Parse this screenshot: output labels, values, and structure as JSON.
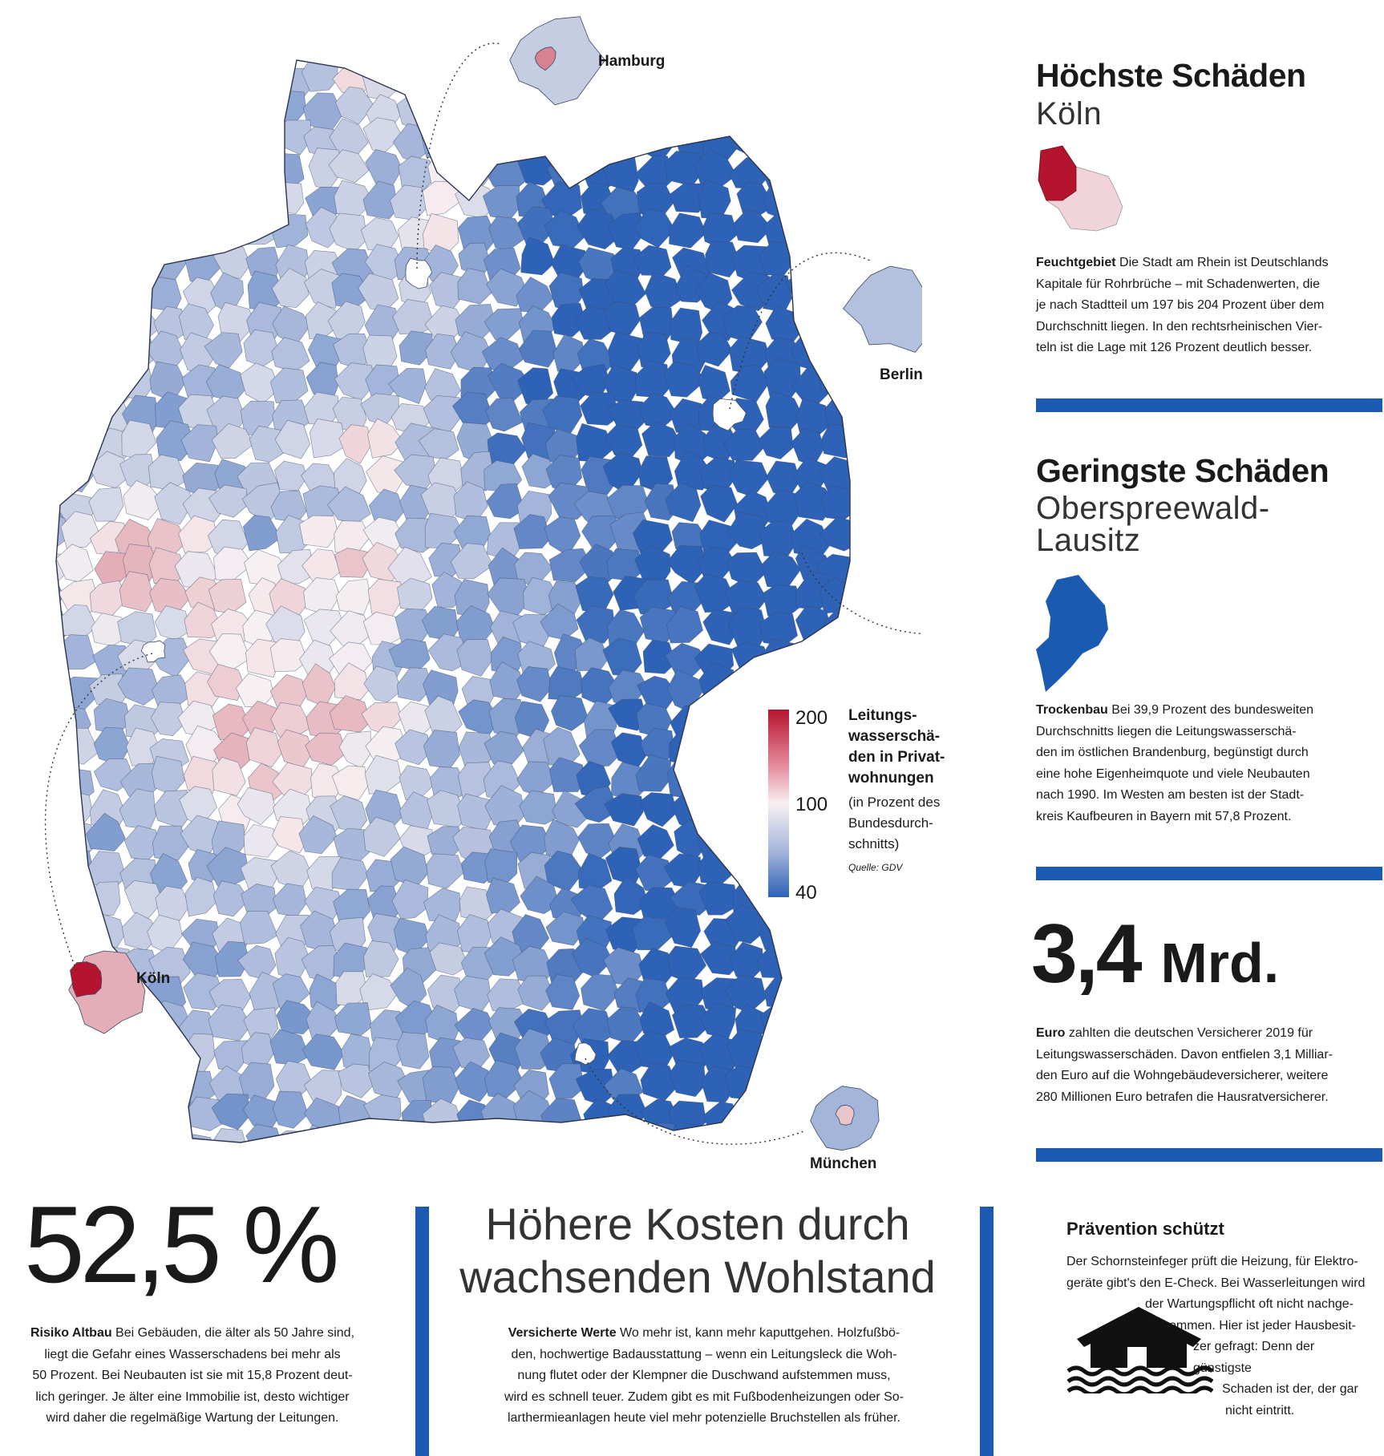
{
  "map": {
    "title": "Leitungswasserschäden in Privatwohnungen",
    "cities": [
      {
        "id": "hamburg",
        "label": "Hamburg"
      },
      {
        "id": "berlin",
        "label": "Berlin"
      },
      {
        "id": "koeln",
        "label": "Köln"
      },
      {
        "id": "muenchen",
        "label": "München"
      }
    ],
    "legend": {
      "title": "Leitungs-wasserschä-den in Privat-wohnungen",
      "title_lines": [
        "Leitungs-",
        "wasserschä-",
        "den in Privat-",
        "wohnungen"
      ],
      "subtitle_lines": [
        "(in Prozent des",
        "Bundesdurch-",
        "schnitts)"
      ],
      "source": "Quelle: GDV",
      "ticks": [
        "200",
        "100",
        "40"
      ],
      "colors": {
        "high": "#b5142f",
        "mid": "#f7f0f2",
        "low": "#2d62b7"
      }
    }
  },
  "highest": {
    "heading": "Höchste Schäden",
    "place": "Köln",
    "lead": "Feuchtgebiet",
    "text_lines": [
      " Die Stadt am Rhein ist Deutschlands",
      "Kapitale für Rohrbrüche – mit Schadenwerten, die",
      "je nach Stadtteil um 197 bis 204 Prozent über dem",
      "Durchschnitt liegen. In den rechtsrheinischen Vier-",
      "teln ist die Lage mit 126 Prozent deutlich besser."
    ]
  },
  "lowest": {
    "heading": "Geringste Schäden",
    "place_lines": [
      "Oberspreewald-",
      "Lausitz"
    ],
    "lead": "Trockenbau",
    "text_lines": [
      " Bei 39,9 Prozent des bundesweiten",
      "Durchschnitts liegen die Leitungswasserschä-",
      "den im östlichen Brandenburg, begünstigt durch",
      "eine hohe Eigenheimquote und viele Neubauten",
      "nach 1990. Im Westen am besten ist der Stadt-",
      "kreis Kaufbeuren in Bayern mit 57,8 Prozent."
    ]
  },
  "total": {
    "number": "3,4",
    "unit": "Mrd.",
    "lead": "Euro",
    "text_lines": [
      " zahlten die deutschen Versicherer 2019 für",
      "Leitungswasserschäden. Davon entfielen 3,1 Milliar-",
      "den Euro auf die Wohngebäudeversicherer, weitere",
      "280 Millionen Euro betrafen die Hausratversicherer."
    ]
  },
  "altbau": {
    "percent": "52,5 %",
    "lead": "Risiko Altbau",
    "text_lines": [
      " Bei Gebäuden, die älter als 50 Jahre sind,",
      "liegt die Gefahr eines Wasserschadens bei mehr als",
      "50 Prozent. Bei Neubauten ist sie mit 15,8 Prozent deut-",
      "lich geringer. Je älter eine Immobilie ist, desto wichtiger",
      "wird daher die regelmäßige Wartung der Leitungen."
    ]
  },
  "costs": {
    "title_lines": [
      "Höhere Kosten durch",
      "wachsenden Wohlstand"
    ],
    "lead": "Versicherte Werte",
    "text_lines": [
      " Wo mehr ist, kann mehr kaputtgehen. Holzfußbö-",
      "den, hochwertige Badausstattung – wenn ein Leitungsleck die Woh-",
      "nung flutet oder der Klempner die Duschwand aufstemmen muss,",
      "wird es schnell teuer. Zudem gibt es mit Fußbodenheizungen oder So-",
      "larthermieanlagen heute viel mehr potenzielle Bruchstellen als früher."
    ]
  },
  "prevention": {
    "title": "Prävention schützt",
    "text_lines": [
      "Der Schornsteinfeger prüft die Heizung, für Elektro-",
      "geräte gibt's den E-Check. Bei Wasserleitungen wird",
      "der Wartungspflicht oft nicht nachge-",
      "kommen. Hier ist jeder Hausbesit-",
      "zer gefragt: Denn der günstigste",
      "Schaden ist der, der gar",
      "nicht eintritt."
    ]
  }
}
